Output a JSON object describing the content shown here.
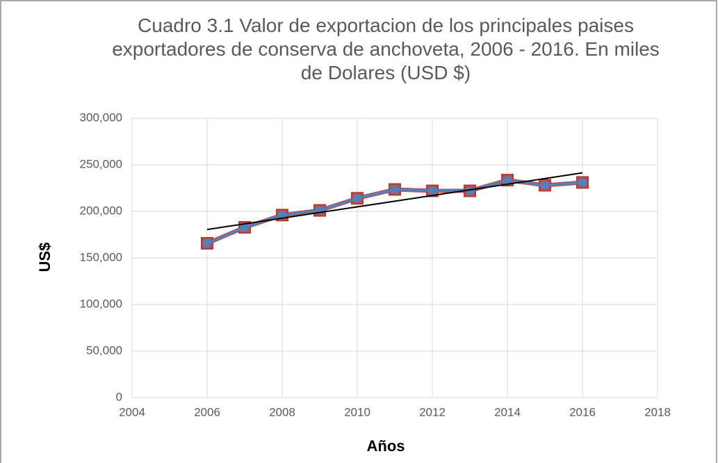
{
  "chart_data": {
    "type": "line",
    "title": "Cuadro 3.1 Valor de exportacion de los principales paises exportadores de conserva de anchoveta, 2006 - 2016. En miles de Dolares (USD $)",
    "x_label": "Años",
    "y_label": "US$",
    "x": [
      2006,
      2007,
      2008,
      2009,
      2010,
      2011,
      2012,
      2013,
      2014,
      2015,
      2016
    ],
    "series": [
      {
        "color": "#c0504d",
        "marker": "square",
        "values": [
          165700,
          182800,
          196000,
          201000,
          214000,
          223500,
          222000,
          222000,
          233500,
          228000,
          231000
        ]
      },
      {
        "color": "#4f81bd",
        "marker": "circle",
        "values": [
          165700,
          182800,
          196000,
          201000,
          214000,
          223500,
          222000,
          222000,
          233500,
          228000,
          231000
        ]
      }
    ],
    "trendline": {
      "color": "#000000",
      "x": [
        2006,
        2016
      ],
      "values": [
        180500,
        241300
      ]
    },
    "xlim": [
      2004,
      2018
    ],
    "xticks": [
      2004,
      2006,
      2008,
      2010,
      2012,
      2014,
      2016,
      2018
    ],
    "ylim": [
      0,
      300000
    ],
    "yticks": [
      0,
      {
        "value": 50000,
        "label": "50,000"
      },
      {
        "value": 100000,
        "label": "100,000"
      },
      {
        "value": 150000,
        "label": "150,000"
      },
      {
        "value": 200000,
        "label": "200,000"
      },
      {
        "value": 250000,
        "label": "250,000"
      },
      {
        "value": 300000,
        "label": "300,000"
      }
    ],
    "grid": true
  }
}
